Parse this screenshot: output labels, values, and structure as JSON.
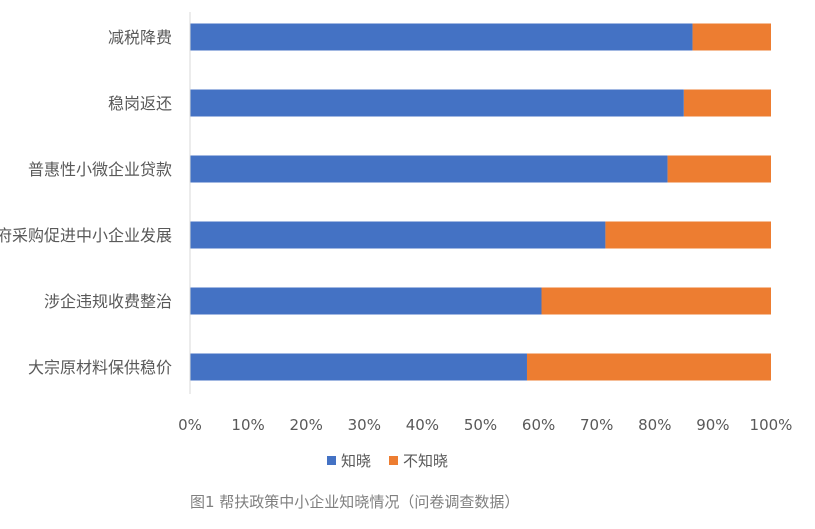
{
  "chart_data": {
    "type": "bar",
    "orientation": "horizontal",
    "stacked": "percent",
    "categories": [
      "减税降费",
      "稳岗返还",
      "普惠性小微企业贷款",
      "政府采购促进中小企业发展",
      "涉企违规收费整治",
      "大宗原材料保供稳价"
    ],
    "series": [
      {
        "name": "知晓",
        "color": "#4472C4",
        "values": [
          86.5,
          85,
          82.2,
          71.5,
          60.5,
          58
        ]
      },
      {
        "name": "不知晓",
        "color": "#ED7D31",
        "values": [
          13.5,
          15,
          17.8,
          28.5,
          39.5,
          42
        ]
      }
    ],
    "xlim": [
      0,
      100
    ],
    "x_ticks": [
      "0%",
      "10%",
      "20%",
      "30%",
      "40%",
      "50%",
      "60%",
      "70%",
      "80%",
      "90%",
      "100%"
    ],
    "grid": false,
    "legend_position": "bottom"
  },
  "caption": "图1 帮扶政策中小企业知晓情况（问卷调查数据）"
}
